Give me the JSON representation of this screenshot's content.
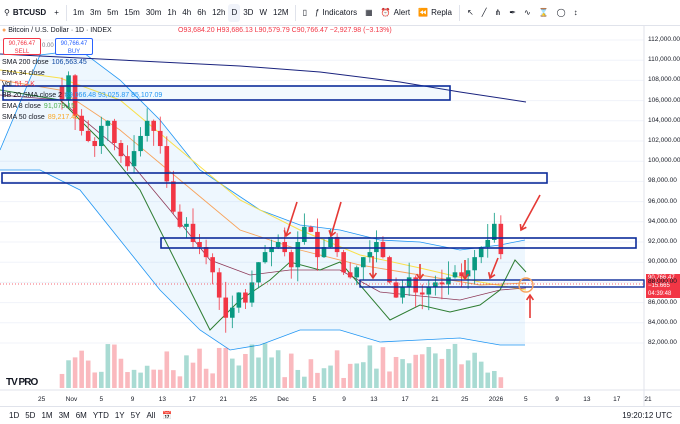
{
  "toolbar": {
    "symbol": "BTCUSD",
    "timeframes": [
      "1m",
      "3m",
      "5m",
      "15m",
      "30m",
      "1h",
      "4h",
      "6h",
      "12h",
      "D",
      "3D",
      "W",
      "12M"
    ],
    "active_timeframe": "D",
    "indicators_label": "Indicators",
    "alert_label": "Alert",
    "replay_label": "Repla"
  },
  "legend": {
    "title": "Bitcoin / U.S. Dollar · 1D · INDEX",
    "ohlc": "O93,684.20 H93,686.13 L90,579.79 C90,766.47 −2,927.98 (−3.13%)",
    "sell_price": "90,766.47",
    "sell_label": "SELL",
    "spread": "0.00",
    "buy_price": "90,766.47",
    "buy_label": "BUY",
    "rows": [
      {
        "label": "SMA 200 close",
        "value": "106,563.45",
        "color": "#0d47a1"
      },
      {
        "label": "EMA 34 close",
        "value": "",
        "color": "#f7a35c"
      },
      {
        "label": "Vol",
        "value": "51.2 K",
        "color": "#f23645"
      },
      {
        "label": "BB 20 SMA close 2",
        "value": "89,066.48  93,025.87  85,107.09",
        "color": "#2196f3"
      },
      {
        "label": "EMA 8 close",
        "value": "91,079.15",
        "color": "#4caf50"
      },
      {
        "label": "SMA 50 close",
        "value": "89,217.40",
        "color": "#f9a825"
      }
    ]
  },
  "price_axis": [
    "112,000.00",
    "110,000.00",
    "108,000.00",
    "106,000.00",
    "104,000.00",
    "102,000.00",
    "100,000.00",
    "98,000.00",
    "96,000.00",
    "94,000.00",
    "92,000.00",
    "90,000.00",
    "88,000.00",
    "86,000.00",
    "84,000.00",
    "82,000.00"
  ],
  "time_axis": [
    {
      "label": "25"
    },
    {
      "label": "Nov"
    },
    {
      "label": "5"
    },
    {
      "label": "9"
    },
    {
      "label": "13"
    },
    {
      "label": "17"
    },
    {
      "label": "21"
    },
    {
      "label": "25"
    },
    {
      "label": "Dec"
    },
    {
      "label": "5"
    },
    {
      "label": "9"
    },
    {
      "label": "13"
    },
    {
      "label": "17"
    },
    {
      "label": "21"
    },
    {
      "label": "25"
    },
    {
      "label": "2026"
    },
    {
      "label": "5"
    },
    {
      "label": "9"
    },
    {
      "label": "13"
    },
    {
      "label": "17"
    },
    {
      "label": "21"
    }
  ],
  "last_price_tag": {
    "price": "90,766.47",
    "change": "−15.665",
    "countdown": "04:39:48"
  },
  "bottom": {
    "ranges": [
      "1D",
      "5D",
      "1M",
      "3M",
      "6M",
      "YTD",
      "1Y",
      "5Y",
      "All"
    ],
    "clock": "19:20:12 UTC"
  },
  "logo_text": "TV PRO"
}
